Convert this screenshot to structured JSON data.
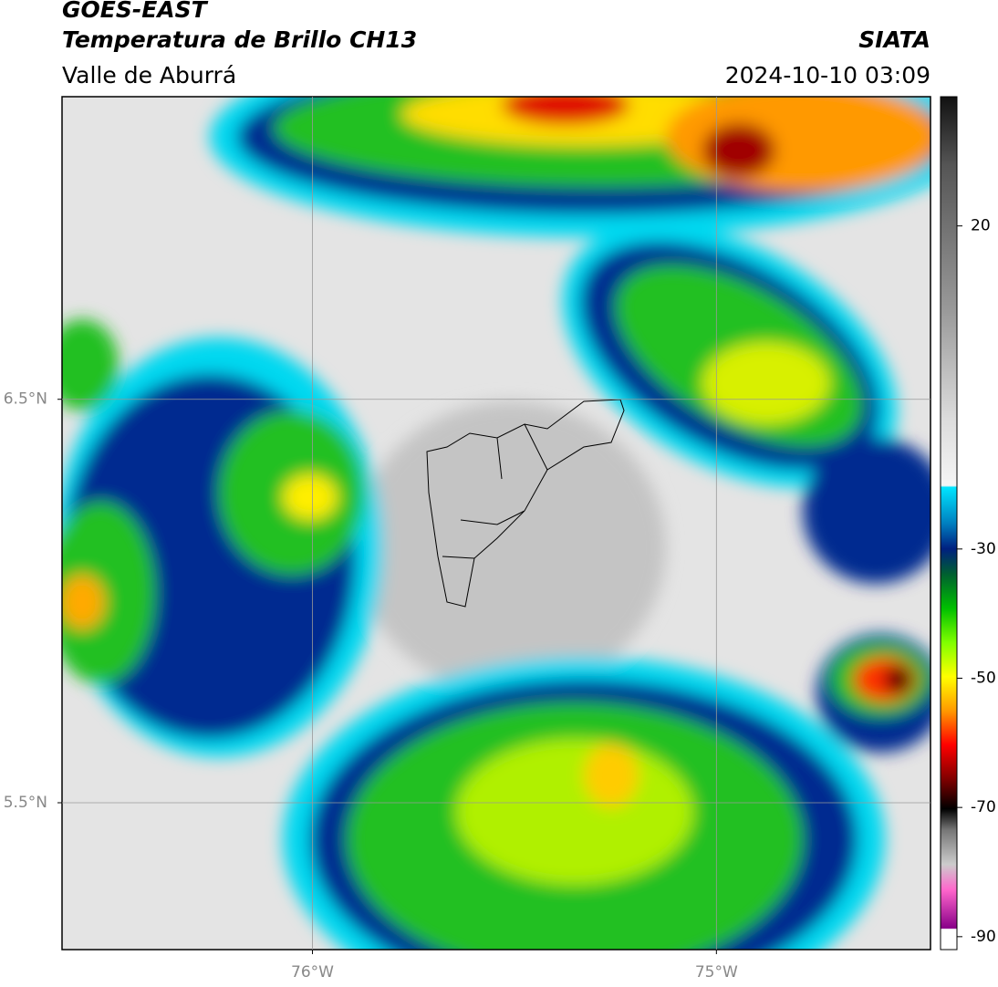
{
  "header": {
    "title": "GOES-EAST",
    "subtitle": "Temperatura de Brillo CH13",
    "region": "Valle de Aburrá",
    "source": "SIATA",
    "datetime": "2024-10-10 03:09"
  },
  "map": {
    "xlim": [
      -76.62,
      -74.47
    ],
    "ylim": [
      5.136,
      7.25
    ],
    "xticks": [
      {
        "value": -76,
        "label": "76°W"
      },
      {
        "value": -75,
        "label": "75°W"
      }
    ],
    "yticks": [
      {
        "value": 6.5,
        "label": "6.5°N"
      },
      {
        "value": 5.5,
        "label": "5.5°N"
      }
    ],
    "grid": true
  },
  "colorbar": {
    "lim": [
      -92,
      40
    ],
    "ticks": [
      20,
      -30,
      -50,
      -70,
      -90
    ]
  }
}
